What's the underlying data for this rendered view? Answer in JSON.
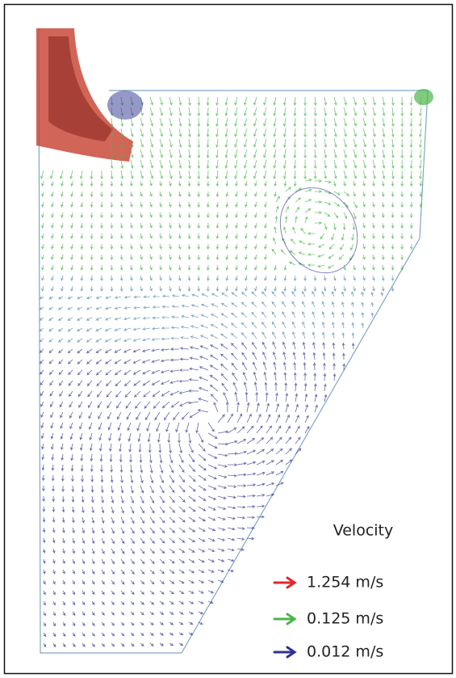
{
  "legend": {
    "title": "Velocity",
    "entries": [
      {
        "label": "1.254 m/s",
        "color": "#e8242a"
      },
      {
        "label": "0.125 m/s",
        "color": "#4cb648"
      },
      {
        "label": "0.012 m/s",
        "color": "#2e3192"
      }
    ]
  }
}
